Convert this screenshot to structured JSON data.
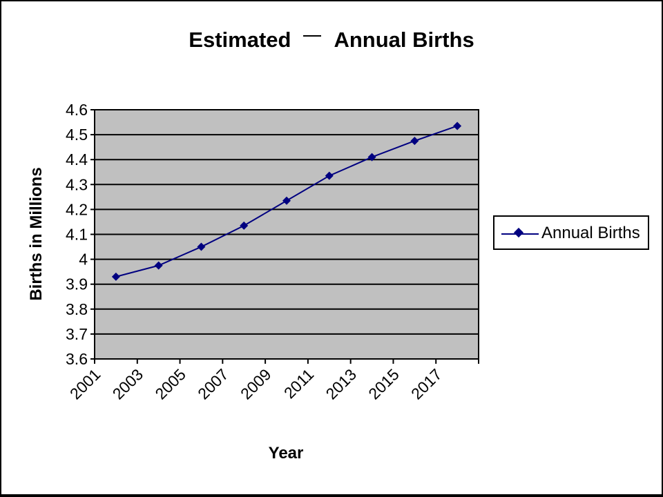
{
  "chart_data": {
    "type": "line",
    "title_left": "Estimated",
    "title_right": "Annual Births",
    "xlabel": "Year",
    "ylabel": "Births in Millions",
    "x_tick_labels": [
      "2001",
      "2003",
      "2005",
      "2007",
      "2009",
      "2011",
      "2013",
      "2015",
      "2017"
    ],
    "y_tick_labels": [
      "4.6",
      "4.5",
      "4.4",
      "4.3",
      "4.2",
      "4.1",
      "4",
      "3.9",
      "3.8",
      "3.7",
      "3.6"
    ],
    "ylim": [
      3.6,
      4.6
    ],
    "series": [
      {
        "name": "Annual Births",
        "x": [
          2002,
          2004,
          2006,
          2008,
          2010,
          2012,
          2014,
          2016,
          2018
        ],
        "values": [
          3.93,
          3.975,
          4.05,
          4.135,
          4.235,
          4.335,
          4.41,
          4.475,
          4.535
        ]
      }
    ],
    "grid": true,
    "legend_position": "right",
    "colors": {
      "series": "#000080",
      "plot_background": "#c0c0c0",
      "gridline": "#000000",
      "frame": "#000000"
    }
  }
}
